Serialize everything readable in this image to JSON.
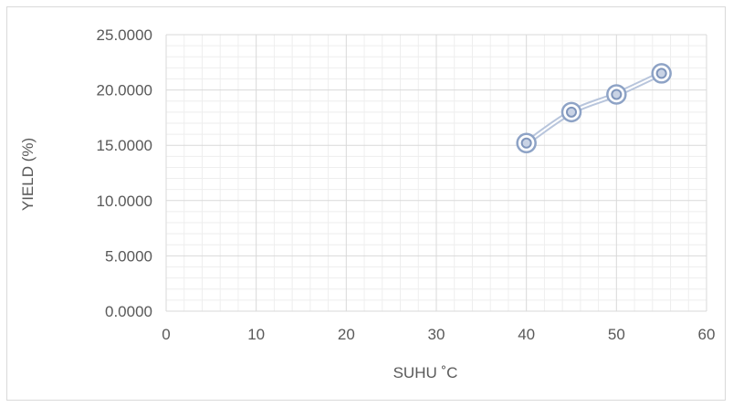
{
  "chart_data": {
    "type": "scatter",
    "title": "",
    "xlabel": "SUHU ˚C",
    "ylabel": "YIELD (%)",
    "xlim": [
      0,
      60
    ],
    "ylim": [
      0,
      25
    ],
    "x_ticks": [
      "0",
      "10",
      "20",
      "30",
      "40",
      "50",
      "60"
    ],
    "y_ticks": [
      "0.0000",
      "5.0000",
      "10.0000",
      "15.0000",
      "20.0000",
      "25.0000"
    ],
    "grid": true,
    "minor_grid": true,
    "legend": "none",
    "series": [
      {
        "x": [
          40,
          45,
          50,
          55
        ],
        "y": [
          15.2,
          18.0,
          19.6,
          21.5
        ],
        "smooth_line": true,
        "marker": "double-circle",
        "color": "#8EA3C6"
      }
    ]
  }
}
